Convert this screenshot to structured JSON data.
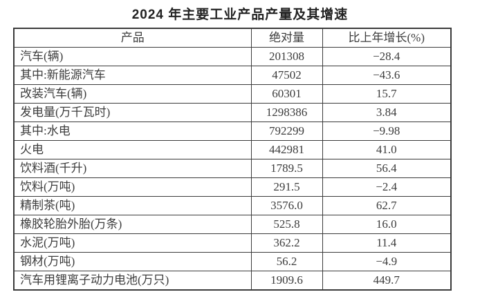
{
  "title": "2024 年主要工业产品产量及其增速",
  "table": {
    "headers": {
      "product": "产品",
      "value": "绝对量",
      "growth": "比上年增长(%)"
    },
    "rows": [
      {
        "product": "汽车(辆)",
        "value": "201308",
        "growth": "−28.4"
      },
      {
        "product": "其中:新能源汽车",
        "value": "47502",
        "growth": "−43.6"
      },
      {
        "product": "改装汽车(辆)",
        "value": "60301",
        "growth": "15.7"
      },
      {
        "product": "发电量(万千瓦时)",
        "value": "1298386",
        "growth": "3.84"
      },
      {
        "product": "其中:水电",
        "value": "792299",
        "growth": "−9.98"
      },
      {
        "product": "火电",
        "value": "442981",
        "growth": "41.0"
      },
      {
        "product": "饮料酒(千升)",
        "value": "1789.5",
        "growth": "56.4"
      },
      {
        "product": "饮料(万吨)",
        "value": "291.5",
        "growth": "−2.4"
      },
      {
        "product": "精制茶(吨)",
        "value": "3576.0",
        "growth": "62.7"
      },
      {
        "product": "橡胶轮胎外胎(万条)",
        "value": "525.8",
        "growth": "16.0"
      },
      {
        "product": "水泥(万吨)",
        "value": "362.2",
        "growth": "11.4"
      },
      {
        "product": "钢材(万吨)",
        "value": "56.2",
        "growth": "−4.9"
      },
      {
        "product": "汽车用锂离子动力电池(万只)",
        "value": "1909.6",
        "growth": "449.7"
      }
    ]
  }
}
